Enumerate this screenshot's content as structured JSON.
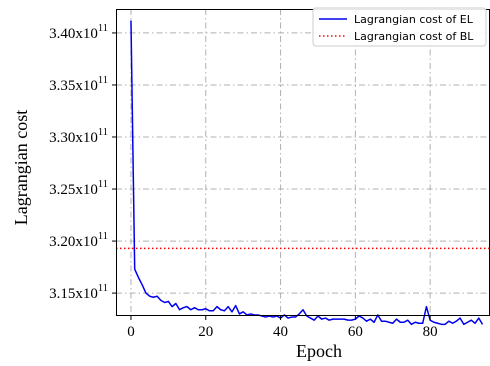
{
  "chart_data": {
    "type": "line",
    "title": "",
    "xlabel": "Epoch",
    "ylabel": "Lagrangian cost",
    "xlim": [
      -4,
      96
    ],
    "ylim": [
      312800000000.0,
      342300000000.0
    ],
    "x_ticks": [
      0,
      20,
      40,
      60,
      80
    ],
    "y_ticks": [
      {
        "value": 315000000000.0,
        "label": "3.15x10",
        "exp": "11"
      },
      {
        "value": 320000000000.0,
        "label": "3.20x10",
        "exp": "11"
      },
      {
        "value": 325000000000.0,
        "label": "3.25x10",
        "exp": "11"
      },
      {
        "value": 330000000000.0,
        "label": "3.30x10",
        "exp": "11"
      },
      {
        "value": 335000000000.0,
        "label": "3.35x10",
        "exp": "11"
      },
      {
        "value": 340000000000.0,
        "label": "3.40x10",
        "exp": "11"
      }
    ],
    "grid": true,
    "legend_position": "top-right",
    "series": [
      {
        "name": "Lagrangian cost of EL",
        "style": "solid",
        "color": "#0000ee",
        "x": [
          0,
          1,
          2,
          3,
          4,
          5,
          6,
          7,
          8,
          9,
          10,
          11,
          12,
          13,
          14,
          15,
          16,
          17,
          18,
          19,
          20,
          21,
          22,
          23,
          24,
          25,
          26,
          27,
          28,
          29,
          30,
          31,
          32,
          33,
          34,
          35,
          36,
          37,
          38,
          39,
          40,
          41,
          42,
          43,
          44,
          45,
          46,
          47,
          48,
          49,
          50,
          51,
          52,
          53,
          54,
          55,
          56,
          57,
          58,
          59,
          60,
          61,
          62,
          63,
          64,
          65,
          66,
          67,
          68,
          69,
          70,
          71,
          72,
          73,
          74,
          75,
          76,
          77,
          78,
          79,
          80,
          81,
          82,
          83,
          84,
          85,
          86,
          87,
          88,
          89,
          90,
          91,
          92,
          93,
          94
        ],
        "y": [
          341200000000.0,
          317300000000.0,
          316500000000.0,
          315800000000.0,
          315000000000.0,
          314700000000.0,
          314600000000.0,
          314700000000.0,
          314300000000.0,
          314100000000.0,
          314200000000.0,
          313700000000.0,
          314000000000.0,
          313400000000.0,
          313600000000.0,
          313700000000.0,
          313400000000.0,
          313600000000.0,
          313400000000.0,
          313400000000.0,
          313500000000.0,
          313300000000.0,
          313300000000.0,
          313700000000.0,
          313400000000.0,
          313300000000.0,
          313700000000.0,
          313200000000.0,
          313800000000.0,
          313000000000.0,
          313200000000.0,
          312900000000.0,
          313000000000.0,
          312900000000.0,
          312900000000.0,
          312800000000.0,
          312700000000.0,
          312800000000.0,
          312700000000.0,
          312800000000.0,
          312600000000.0,
          312900000000.0,
          312600000000.0,
          312700000000.0,
          312700000000.0,
          313000000000.0,
          313400000000.0,
          312800000000.0,
          312600000000.0,
          312400000000.0,
          312800000000.0,
          312500000000.0,
          312600000000.0,
          312400000000.0,
          312500000000.0,
          312500000000.0,
          312500000000.0,
          312500000000.0,
          312400000000.0,
          312400000000.0,
          312500000000.0,
          312800000000.0,
          312600000000.0,
          312300000000.0,
          312500000000.0,
          312200000000.0,
          312900000000.0,
          312300000000.0,
          312300000000.0,
          312200000000.0,
          312100000000.0,
          312500000000.0,
          312200000000.0,
          312200000000.0,
          312400000000.0,
          312000000000.0,
          312200000000.0,
          312100000000.0,
          312100000000.0,
          313700000000.0,
          312400000000.0,
          312200000000.0,
          312100000000.0,
          312000000000.0,
          312000000000.0,
          312300000000.0,
          312100000000.0,
          312300000000.0,
          312600000000.0,
          312000000000.0,
          312200000000.0,
          312400000000.0,
          312100000000.0,
          312600000000.0,
          312000000000.0
        ]
      },
      {
        "name": "Lagrangian cost of BL",
        "style": "dotted",
        "color": "#ff0000",
        "y_constant": 319300000000.0
      }
    ]
  }
}
